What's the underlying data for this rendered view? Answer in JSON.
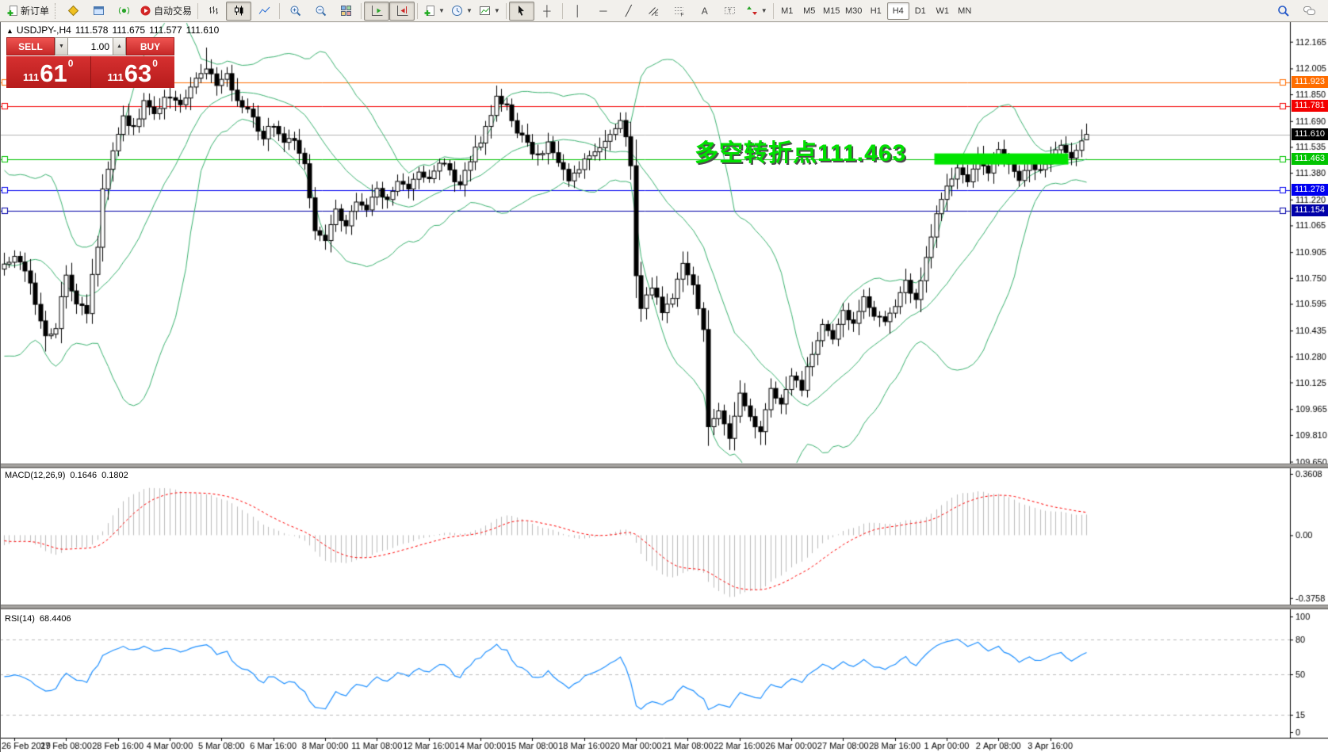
{
  "toolbar": {
    "new_order_label": "新订单",
    "auto_trading_label": "自动交易",
    "timeframes": [
      "M1",
      "M5",
      "M15",
      "M30",
      "H1",
      "H4",
      "D1",
      "W1",
      "MN"
    ],
    "active_timeframe": "H4",
    "icons": [
      "new-order-icon",
      "market-watch-icon",
      "navigator-icon",
      "signals-icon",
      "auto-trading-icon",
      "bar-chart-icon",
      "candlestick-chart-icon",
      "line-chart-icon",
      "zoom-in-icon",
      "zoom-out-icon",
      "tile-windows-icon",
      "auto-scroll-icon",
      "chart-shift-icon",
      "new-chart-icon",
      "periods-icon",
      "templates-icon",
      "cursor-icon",
      "crosshair-icon",
      "vertical-line-icon",
      "horizontal-line-icon",
      "trendline-icon",
      "equidistant-channel-icon",
      "fibonacci-icon",
      "text-icon",
      "label-icon",
      "arrows-icon",
      "search-icon",
      "chat-icon"
    ]
  },
  "chart_header": {
    "collapse_icon": "▲",
    "symbol_period": "USDJPY-,H4",
    "open": "111.578",
    "high": "111.675",
    "low": "111.577",
    "close": "111.610"
  },
  "trade_panel": {
    "sell_label": "SELL",
    "buy_label": "BUY",
    "volume": "1.00",
    "bid": {
      "big_figure": "111",
      "pips": "61",
      "pipette": "0"
    },
    "ask": {
      "big_figure": "111",
      "pips": "63",
      "pipette": "0"
    }
  },
  "annotation": {
    "text": "多空转折点111.463",
    "color": "#00e000"
  },
  "price_axis": {
    "ticks": [
      112.165,
      112.005,
      111.85,
      111.69,
      111.535,
      111.38,
      111.22,
      111.065,
      110.905,
      110.75,
      110.595,
      110.435,
      110.28,
      110.125,
      109.965,
      109.81,
      109.65
    ],
    "badges": [
      {
        "price": "111.923",
        "value": 111.923,
        "color": "#ff6d00"
      },
      {
        "price": "111.781",
        "value": 111.781,
        "color": "#f40000"
      },
      {
        "price": "111.610",
        "value": 111.61,
        "color": "#000000",
        "current": true
      },
      {
        "price": "111.463",
        "value": 111.463,
        "color": "#00c400"
      },
      {
        "price": "111.278",
        "value": 111.278,
        "color": "#0000f0"
      },
      {
        "price": "111.154",
        "value": 111.154,
        "color": "#0000a8"
      }
    ]
  },
  "indicators": {
    "macd": {
      "label": "MACD(12,26,9)",
      "value1": "0.1646",
      "value2": "0.1802",
      "axis_ticks": [
        "0.3608",
        "0.00",
        "-0.3758"
      ]
    },
    "rsi": {
      "label": "RSI(14)",
      "value": "68.4406",
      "axis_ticks": [
        100,
        80,
        50,
        15,
        0
      ],
      "levels": [
        80,
        50,
        15
      ]
    }
  },
  "time_axis": {
    "labels": [
      "26 Feb 2019",
      "27 Feb 08:00",
      "28 Feb 16:00",
      "4 Mar 00:00",
      "5 Mar 08:00",
      "6 Mar 16:00",
      "8 Mar 00:00",
      "11 Mar 08:00",
      "12 Mar 16:00",
      "14 Mar 00:00",
      "15 Mar 08:00",
      "18 Mar 16:00",
      "20 Mar 00:00",
      "21 Mar 08:00",
      "22 Mar 16:00",
      "26 Mar 00:00",
      "27 Mar 08:00",
      "28 Mar 16:00",
      "1 Apr 00:00",
      "2 Apr 08:00",
      "3 Apr 16:00"
    ]
  },
  "chart_data": [
    {
      "type": "candlestick",
      "title": "USDJPY- H4",
      "ylim": [
        109.6,
        112.28
      ],
      "last_candle_ohlc": {
        "open": 111.578,
        "high": 111.675,
        "low": 111.577,
        "close": 111.61
      },
      "candle_count": 210,
      "price_path_anchors": [
        [
          0,
          110.82
        ],
        [
          2,
          110.9
        ],
        [
          5,
          110.72
        ],
        [
          8,
          110.4
        ],
        [
          10,
          110.46
        ],
        [
          12,
          110.78
        ],
        [
          14,
          110.6
        ],
        [
          16,
          110.55
        ],
        [
          18,
          110.95
        ],
        [
          19,
          111.3
        ],
        [
          21,
          111.5
        ],
        [
          23,
          111.7
        ],
        [
          25,
          111.64
        ],
        [
          27,
          111.8
        ],
        [
          29,
          111.72
        ],
        [
          31,
          111.85
        ],
        [
          34,
          111.78
        ],
        [
          37,
          111.96
        ],
        [
          39,
          112.02
        ],
        [
          41,
          111.92
        ],
        [
          43,
          111.96
        ],
        [
          45,
          111.82
        ],
        [
          47,
          111.74
        ],
        [
          50,
          111.6
        ],
        [
          52,
          111.68
        ],
        [
          54,
          111.55
        ],
        [
          56,
          111.58
        ],
        [
          58,
          111.45
        ],
        [
          60,
          111.02
        ],
        [
          62,
          110.98
        ],
        [
          64,
          111.15
        ],
        [
          66,
          111.06
        ],
        [
          68,
          111.22
        ],
        [
          70,
          111.15
        ],
        [
          72,
          111.28
        ],
        [
          74,
          111.22
        ],
        [
          76,
          111.35
        ],
        [
          78,
          111.28
        ],
        [
          80,
          111.4
        ],
        [
          82,
          111.33
        ],
        [
          84,
          111.45
        ],
        [
          86,
          111.38
        ],
        [
          88,
          111.3
        ],
        [
          90,
          111.45
        ],
        [
          92,
          111.58
        ],
        [
          94,
          111.74
        ],
        [
          95,
          111.85
        ],
        [
          97,
          111.78
        ],
        [
          99,
          111.62
        ],
        [
          101,
          111.55
        ],
        [
          103,
          111.48
        ],
        [
          105,
          111.55
        ],
        [
          107,
          111.42
        ],
        [
          109,
          111.35
        ],
        [
          111,
          111.42
        ],
        [
          113,
          111.48
        ],
        [
          115,
          111.55
        ],
        [
          117,
          111.62
        ],
        [
          119,
          111.68
        ],
        [
          120,
          111.58
        ],
        [
          121,
          111.44
        ],
        [
          122,
          110.78
        ],
        [
          123,
          110.56
        ],
        [
          125,
          110.7
        ],
        [
          127,
          110.56
        ],
        [
          129,
          110.64
        ],
        [
          131,
          110.82
        ],
        [
          133,
          110.7
        ],
        [
          135,
          110.44
        ],
        [
          136,
          109.88
        ],
        [
          138,
          109.96
        ],
        [
          140,
          109.8
        ],
        [
          142,
          110.06
        ],
        [
          144,
          109.92
        ],
        [
          146,
          109.84
        ],
        [
          148,
          110.1
        ],
        [
          150,
          110.0
        ],
        [
          152,
          110.18
        ],
        [
          154,
          110.1
        ],
        [
          156,
          110.3
        ],
        [
          158,
          110.46
        ],
        [
          160,
          110.38
        ],
        [
          162,
          110.56
        ],
        [
          164,
          110.48
        ],
        [
          166,
          110.62
        ],
        [
          168,
          110.54
        ],
        [
          170,
          110.48
        ],
        [
          172,
          110.6
        ],
        [
          174,
          110.72
        ],
        [
          176,
          110.64
        ],
        [
          178,
          110.86
        ],
        [
          180,
          111.12
        ],
        [
          182,
          111.3
        ],
        [
          184,
          111.42
        ],
        [
          186,
          111.34
        ],
        [
          188,
          111.46
        ],
        [
          190,
          111.38
        ],
        [
          192,
          111.5
        ],
        [
          194,
          111.42
        ],
        [
          196,
          111.34
        ],
        [
          198,
          111.46
        ],
        [
          200,
          111.38
        ],
        [
          202,
          111.48
        ],
        [
          204,
          111.54
        ],
        [
          206,
          111.46
        ],
        [
          207,
          111.52
        ],
        [
          208,
          111.56
        ],
        [
          209,
          111.61
        ]
      ],
      "wick_overrides": {
        "8": {
          "low": 110.31
        },
        "39": {
          "high": 112.13
        },
        "140": {
          "low": 109.72
        },
        "146": {
          "low": 109.75
        }
      },
      "overlays": {
        "bollinger_bands": {
          "period": 20,
          "deviation": 2,
          "color": "#3cb371"
        }
      },
      "horizontal_lines": [
        {
          "price": 111.923,
          "color": "#ff6d00"
        },
        {
          "price": 111.781,
          "color": "#f40000"
        },
        {
          "price": 111.61,
          "color": "#b4b4b4",
          "role": "current-price"
        },
        {
          "price": 111.463,
          "color": "#00c400"
        },
        {
          "price": 111.278,
          "color": "#0000f0"
        },
        {
          "price": 111.154,
          "color": "#0000a8"
        }
      ],
      "highlight_bar": {
        "price": 111.463,
        "from_candle": 180,
        "to_candle": 205,
        "color": "#00e400",
        "thickness_px": 14
      }
    },
    {
      "type": "macd",
      "params": [
        12,
        26,
        9
      ],
      "current_macd": 0.1646,
      "current_signal": 0.1802,
      "histogram_color": "#bcbcbc",
      "signal_color": "#ff0000",
      "axis_max": 0.3608,
      "axis_min": -0.3758
    },
    {
      "type": "line",
      "name": "RSI",
      "period": 14,
      "current": 68.4406,
      "color": "#1e90ff",
      "levels": [
        80,
        50,
        15
      ],
      "range": [
        0,
        100
      ]
    }
  ]
}
